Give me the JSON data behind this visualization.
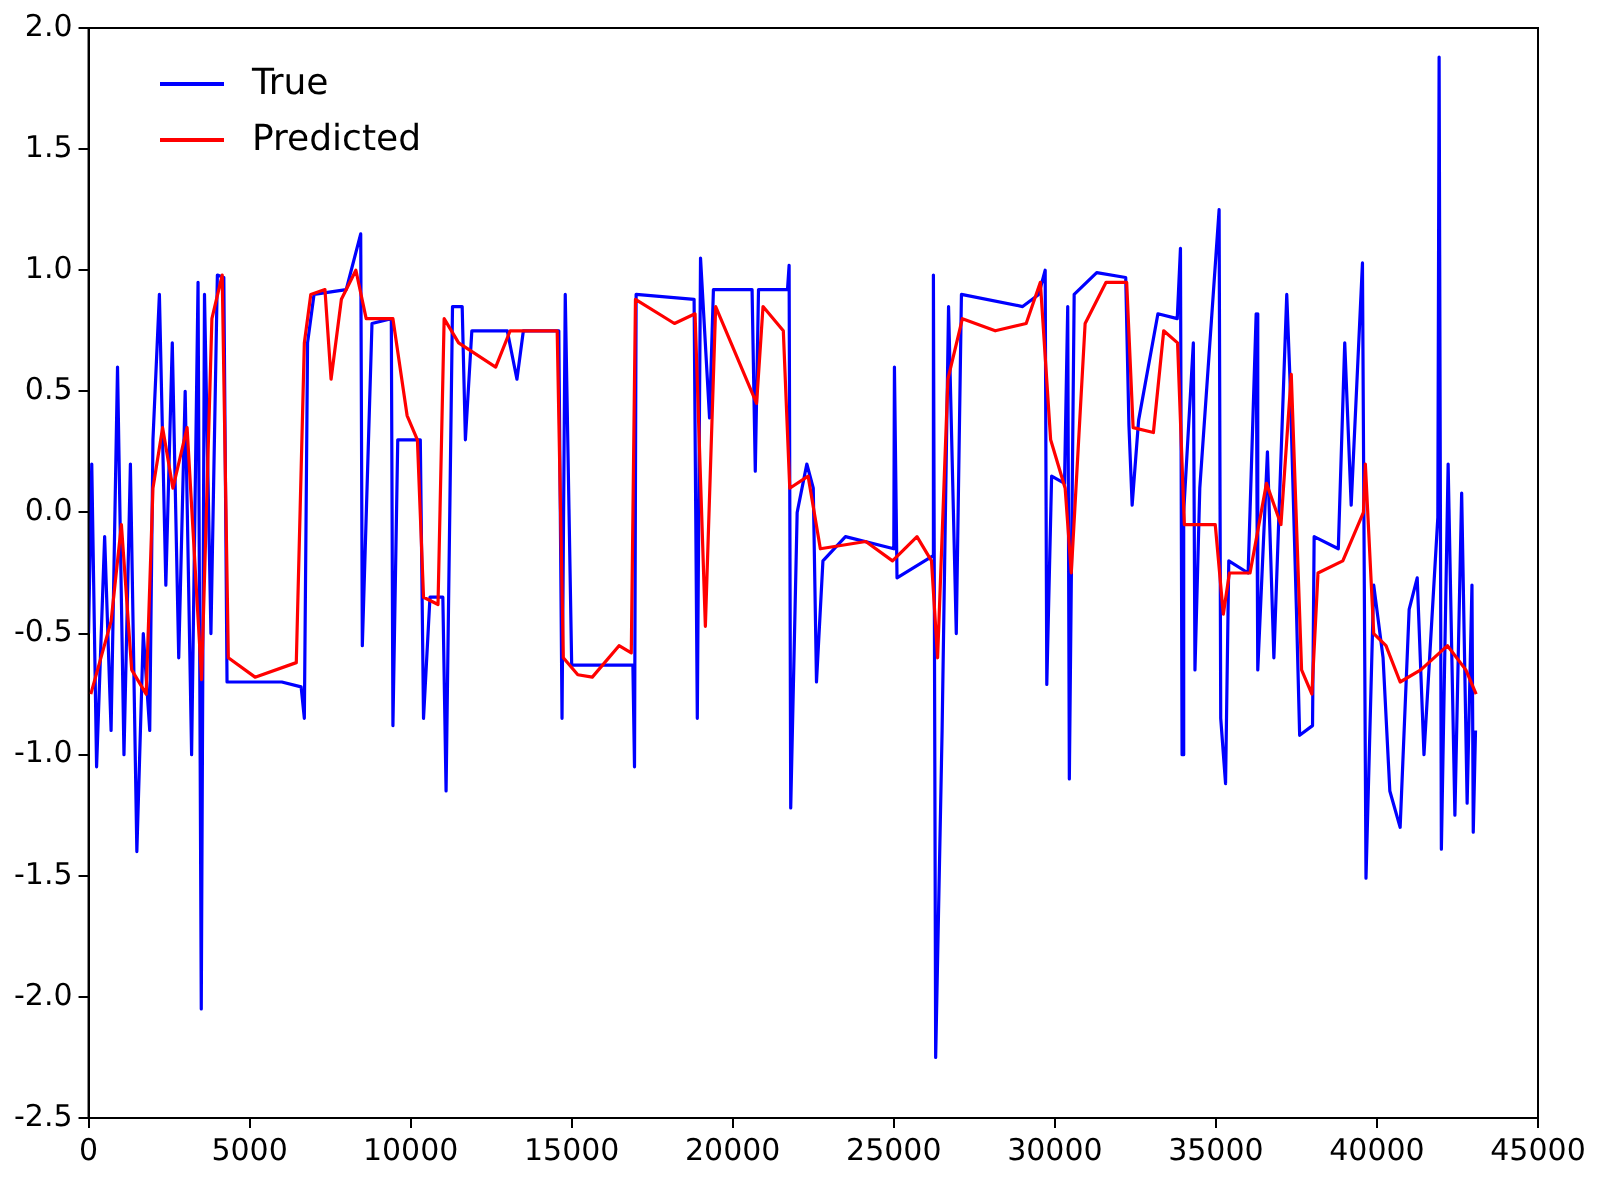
{
  "chart_data": {
    "type": "line",
    "xlim": [
      0,
      45000
    ],
    "xticks": [
      0,
      5000,
      10000,
      15000,
      20000,
      25000,
      30000,
      35000,
      40000,
      45000
    ],
    "ylim": [
      -2.5,
      2
    ],
    "yticks": [
      {
        "value": -2.5,
        "label": "-2.5"
      },
      {
        "value": -2,
        "label": "-2.0"
      },
      {
        "value": -1.5,
        "label": "-1.5"
      },
      {
        "value": -1,
        "label": "-1.0"
      },
      {
        "value": -0.5,
        "label": "-0.5"
      },
      {
        "value": 0,
        "label": "0.0"
      },
      {
        "value": 0.5,
        "label": "0.5"
      },
      {
        "value": 1,
        "label": "1.0"
      },
      {
        "value": 1.5,
        "label": "1.5"
      },
      {
        "value": 2,
        "label": "2.0"
      }
    ],
    "grid": false,
    "legend": "top left",
    "marker": "none",
    "line_style": "solid",
    "series": [
      {
        "name": "True",
        "color": "#0000ff",
        "x": [
          0,
          100,
          250,
          500,
          700,
          900,
          1100,
          1300,
          1500,
          1700,
          1900,
          2000,
          2200,
          2400,
          2600,
          2800,
          3000,
          3200,
          3400,
          3500,
          3600,
          3800,
          4000,
          4200,
          4300,
          5000,
          6000,
          6600,
          6700,
          6800,
          7000,
          8000,
          8450,
          8500,
          8800,
          9400,
          9450,
          9600,
          10300,
          10400,
          10600,
          11000,
          11100,
          11300,
          11600,
          11700,
          11900,
          13000,
          13300,
          13500,
          14600,
          14700,
          14800,
          15000,
          16900,
          16950,
          17000,
          18800,
          18900,
          19000,
          19280,
          19400,
          20600,
          20700,
          20800,
          21700,
          21750,
          21800,
          22000,
          22300,
          22500,
          22600,
          22800,
          23500,
          25000,
          25020,
          25100,
          26200,
          26230,
          26300,
          26500,
          26700,
          26940,
          27100,
          29000,
          29500,
          29700,
          29750,
          29900,
          30300,
          30400,
          30450,
          30600,
          31300,
          32200,
          32300,
          32400,
          32600,
          33200,
          33800,
          33900,
          33950,
          34000,
          34300,
          34350,
          34500,
          35100,
          35150,
          35300,
          35400,
          36000,
          36250,
          36300,
          36600,
          36800,
          37200,
          37300,
          37500,
          37600,
          38000,
          38050,
          38800,
          39000,
          39200,
          39550,
          39660,
          39900,
          40190,
          40400,
          40720,
          41000,
          41250,
          41460,
          41890,
          41930,
          42000,
          42210,
          42420,
          42630,
          42800,
          42950,
          42990,
          43060
        ],
        "values": [
          -0.5,
          0.2,
          -1.05,
          -0.1,
          -0.9,
          0.6,
          -1.0,
          0.2,
          -1.4,
          -0.5,
          -0.9,
          0.3,
          0.9,
          -0.3,
          0.7,
          -0.6,
          0.5,
          -1.0,
          0.95,
          -2.05,
          0.9,
          -0.5,
          0.98,
          0.97,
          -0.7,
          -0.7,
          -0.7,
          -0.72,
          -0.85,
          0.7,
          0.9,
          0.92,
          1.15,
          -0.55,
          0.78,
          0.8,
          -0.88,
          0.3,
          0.3,
          -0.85,
          -0.35,
          -0.35,
          -1.15,
          0.85,
          0.85,
          0.3,
          0.75,
          0.75,
          0.55,
          0.75,
          0.75,
          -0.85,
          0.9,
          -0.63,
          -0.63,
          -1.05,
          0.9,
          0.88,
          -0.85,
          1.05,
          0.39,
          0.92,
          0.92,
          0.17,
          0.92,
          0.92,
          1.02,
          -1.22,
          0.0,
          0.2,
          0.1,
          -0.7,
          -0.2,
          -0.1,
          -0.15,
          0.6,
          -0.27,
          -0.18,
          0.98,
          -2.25,
          -0.9,
          0.85,
          -0.5,
          0.9,
          0.85,
          0.9,
          1.0,
          -0.71,
          0.15,
          0.12,
          0.85,
          -1.1,
          0.9,
          0.99,
          0.97,
          0.36,
          0.03,
          0.38,
          0.82,
          0.8,
          1.09,
          -1.0,
          0.0,
          0.7,
          -0.65,
          0.1,
          1.25,
          -0.85,
          -1.12,
          -0.2,
          -0.25,
          0.82,
          -0.65,
          0.25,
          -0.6,
          0.9,
          0.55,
          -0.4,
          -0.92,
          -0.88,
          -0.1,
          -0.15,
          0.7,
          0.03,
          1.03,
          -1.51,
          -0.3,
          -0.6,
          -1.15,
          -1.3,
          -0.4,
          -0.27,
          -1.0,
          -0.02,
          1.88,
          -1.39,
          0.2,
          -1.25,
          0.08,
          -1.2,
          -0.3,
          -1.32,
          -0.9
        ]
      },
      {
        "name": "Predicted",
        "color": "#ff0000",
        "x": [
          70,
          700,
          1020,
          1340,
          1790,
          2000,
          2300,
          2620,
          3060,
          3510,
          3830,
          4150,
          4340,
          5170,
          6450,
          6700,
          6900,
          7340,
          7530,
          7850,
          8300,
          8620,
          9450,
          9890,
          10210,
          10400,
          10850,
          11040,
          11490,
          12640,
          13090,
          14550,
          14740,
          15190,
          15640,
          16470,
          16850,
          16980,
          18190,
          18830,
          19150,
          19470,
          20740,
          20940,
          21570,
          21770,
          22340,
          22720,
          24130,
          24960,
          25720,
          26170,
          26360,
          26680,
          27130,
          28150,
          29110,
          29550,
          29870,
          30320,
          30510,
          30940,
          31590,
          32230,
          32430,
          33060,
          33380,
          33810,
          34020,
          34980,
          35230,
          35420,
          36060,
          36570,
          37020,
          37340,
          37660,
          37980,
          38170,
          38940,
          39580,
          39640,
          39900,
          40280,
          40720,
          41360,
          42190,
          42760,
          43080
        ],
        "values": [
          -0.75,
          -0.45,
          -0.05,
          -0.65,
          -0.75,
          0.1,
          0.35,
          0.1,
          0.35,
          -0.69,
          0.8,
          0.98,
          -0.6,
          -0.68,
          -0.62,
          0.7,
          0.9,
          0.92,
          0.55,
          0.88,
          1.0,
          0.8,
          0.8,
          0.4,
          0.3,
          -0.35,
          -0.38,
          0.8,
          0.7,
          0.6,
          0.75,
          0.75,
          -0.6,
          -0.67,
          -0.68,
          -0.55,
          -0.58,
          0.88,
          0.78,
          0.82,
          -0.47,
          0.85,
          0.45,
          0.85,
          0.75,
          0.1,
          0.15,
          -0.15,
          -0.12,
          -0.2,
          -0.1,
          -0.2,
          -0.6,
          0.55,
          0.8,
          0.75,
          0.78,
          0.95,
          0.3,
          0.1,
          -0.25,
          0.78,
          0.95,
          0.95,
          0.35,
          0.33,
          0.75,
          0.7,
          -0.05,
          -0.05,
          -0.42,
          -0.25,
          -0.25,
          0.12,
          -0.05,
          0.57,
          -0.65,
          -0.75,
          -0.25,
          -0.2,
          0.0,
          0.2,
          -0.5,
          -0.55,
          -0.7,
          -0.65,
          -0.55,
          -0.65,
          -0.75
        ]
      }
    ]
  }
}
